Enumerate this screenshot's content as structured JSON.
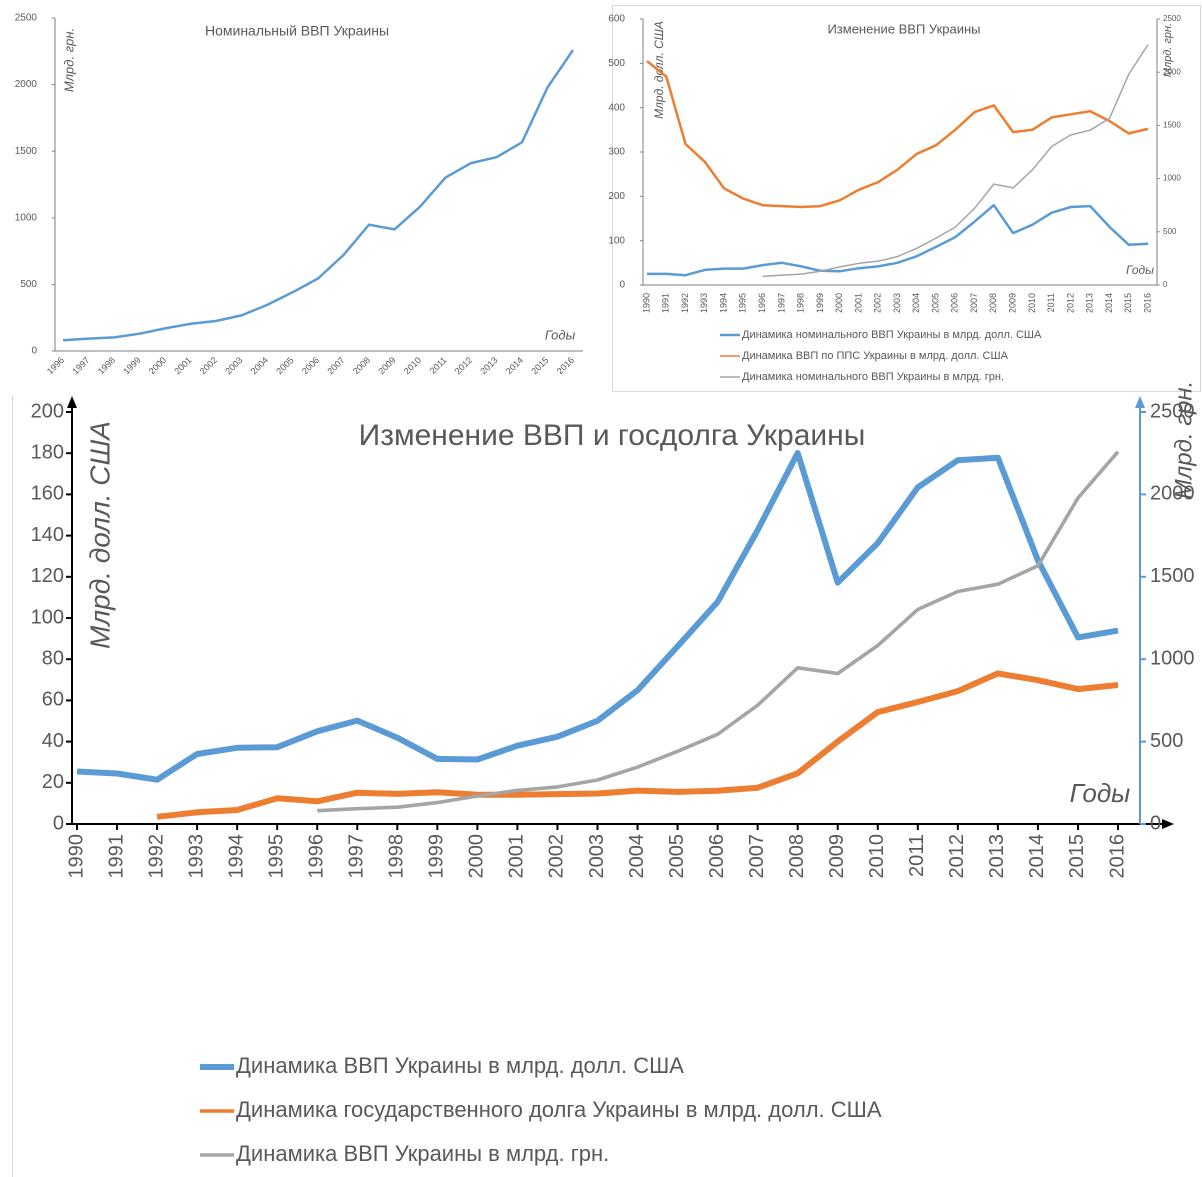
{
  "chart_data": [
    {
      "type": "line",
      "title": "Номинальный ВВП Украины",
      "y_label": "Млрд. грн.",
      "x_label": "Годы",
      "categories": [
        "1996",
        "1997",
        "1998",
        "1999",
        "2000",
        "2001",
        "2002",
        "2003",
        "2004",
        "2005",
        "2006",
        "2007",
        "2008",
        "2009",
        "2010",
        "2011",
        "2012",
        "2013",
        "2014",
        "2015",
        "2016"
      ],
      "values": [
        81,
        93,
        102,
        130,
        170,
        204,
        225,
        267,
        345,
        441,
        544,
        721,
        948,
        913,
        1083,
        1302,
        1411,
        1455,
        1567,
        1979,
        2259
      ],
      "color": "#5b9bd5",
      "ylim": [
        0,
        2500
      ],
      "yticks": [
        0,
        500,
        1000,
        1500,
        2000,
        2500
      ]
    },
    {
      "type": "line",
      "title": "Изменение ВВП Украины",
      "y_label": "Млрд. долл. США",
      "y2_label": "Млрд. грн.",
      "x_label": "Годы",
      "categories": [
        "1990",
        "1991",
        "1992",
        "1993",
        "1994",
        "1995",
        "1996",
        "1997",
        "1998",
        "1999",
        "2000",
        "2001",
        "2002",
        "2003",
        "2004",
        "2005",
        "2006",
        "2007",
        "2008",
        "2009",
        "2010",
        "2011",
        "2012",
        "2013",
        "2014",
        "2015",
        "2016"
      ],
      "series": [
        {
          "name": "Динамика номинального ВВП Украины в млрд. долл. США",
          "color": "#5b9bd5",
          "values": [
            25,
            25,
            22,
            34,
            37,
            37,
            45,
            50,
            42,
            32,
            31,
            38,
            42,
            50,
            65,
            86,
            108,
            143,
            180,
            117,
            136,
            163,
            176,
            178,
            131,
            91,
            93
          ]
        },
        {
          "name": "Динамика ВВП по ППС Украины в млрд. долл. США",
          "color": "#ed7d31",
          "values": [
            505,
            470,
            318,
            278,
            218,
            195,
            180,
            178,
            176,
            178,
            191,
            215,
            232,
            260,
            296,
            315,
            350,
            390,
            405,
            345,
            350,
            378,
            385,
            392,
            370,
            342,
            352
          ]
        },
        {
          "name": "Динамика номинального ВВП Украины в млрд. грн.",
          "color": "#a5a5a5",
          "axis": "y2",
          "values": [
            null,
            null,
            null,
            null,
            null,
            null,
            81,
            93,
            102,
            130,
            170,
            204,
            225,
            267,
            345,
            441,
            544,
            721,
            948,
            913,
            1083,
            1302,
            1411,
            1455,
            1567,
            1979,
            2259
          ]
        }
      ],
      "ylim": [
        0,
        600
      ],
      "yticks": [
        0,
        100,
        200,
        300,
        400,
        500,
        600
      ],
      "y2lim": [
        0,
        2500
      ],
      "y2ticks": [
        0,
        500,
        1000,
        1500,
        2000,
        2500
      ]
    },
    {
      "type": "line",
      "title": "Изменение ВВП и госдолга Украины",
      "y_label": "Млрд. долл. США",
      "y2_label": "Млрд. грн.",
      "x_label": "Годы",
      "categories": [
        "1990",
        "1991",
        "1992",
        "1993",
        "1994",
        "1995",
        "1996",
        "1997",
        "1998",
        "1999",
        "2000",
        "2001",
        "2002",
        "2003",
        "2004",
        "2005",
        "2006",
        "2007",
        "2008",
        "2009",
        "2010",
        "2011",
        "2012",
        "2013",
        "2014",
        "2015",
        "2016"
      ],
      "series": [
        {
          "name": "Динамика ВВП Украины в млрд. долл. США",
          "color": "#5b9bd5",
          "values": [
            25.5,
            24.5,
            21.5,
            34,
            37,
            37.3,
            45,
            50.2,
            41.9,
            31.6,
            31.3,
            38,
            42.4,
            50.1,
            64.9,
            86.2,
            107.8,
            142.7,
            180.1,
            117.2,
            136.4,
            163.4,
            176.6,
            177.8,
            128,
            90.6,
            93.9
          ]
        },
        {
          "name": "Динамика государственного долга Украины в млрд. долл. США",
          "color": "#ed7d31",
          "values": [
            null,
            null,
            3.5,
            5.7,
            6.8,
            12.5,
            11,
            15.2,
            14.6,
            15.4,
            14.2,
            14.2,
            14.5,
            14.8,
            16.2,
            15.6,
            16.1,
            17.6,
            24.6,
            40,
            54.3,
            59.2,
            64.5,
            73.1,
            69.8,
            65.5,
            67.5
          ]
        },
        {
          "name": "Динамика ВВП Украины в млрд. грн.",
          "color": "#a5a5a5",
          "axis": "y2",
          "values": [
            null,
            null,
            null,
            null,
            null,
            null,
            81,
            93,
            102,
            130,
            170,
            204,
            225,
            267,
            345,
            441,
            544,
            721,
            948,
            913,
            1083,
            1302,
            1411,
            1455,
            1567,
            1979,
            2259
          ]
        }
      ],
      "ylim": [
        0,
        200
      ],
      "yticks": [
        0,
        20,
        40,
        60,
        80,
        100,
        120,
        140,
        160,
        180,
        200
      ],
      "y2lim": [
        0,
        2500
      ],
      "y2ticks": [
        0,
        500,
        1000,
        1500,
        2000,
        2500
      ]
    }
  ]
}
